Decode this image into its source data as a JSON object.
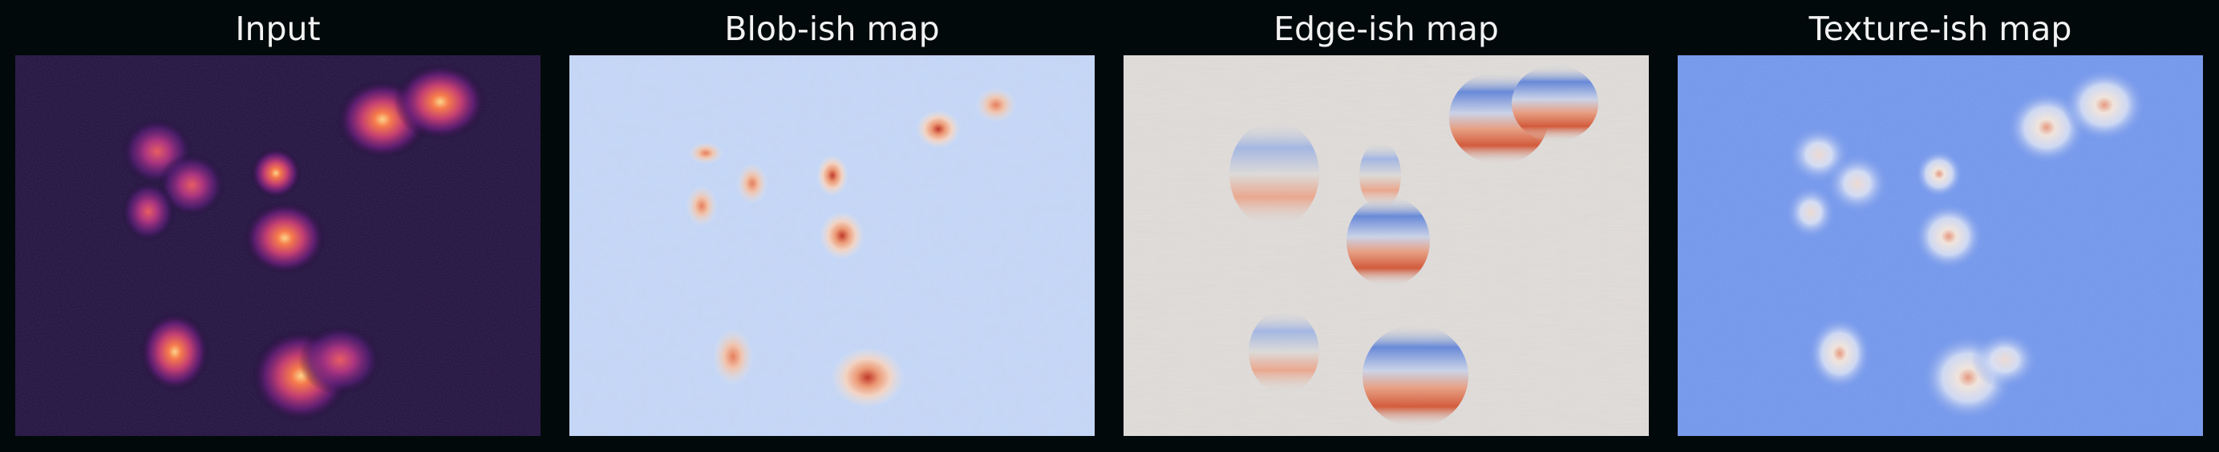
{
  "panels": [
    {
      "title": "Input",
      "colormap": "magma"
    },
    {
      "title": "Blob-ish map",
      "colormap": "coolwarm"
    },
    {
      "title": "Edge-ish map",
      "colormap": "coolwarm"
    },
    {
      "title": "Texture-ish map",
      "colormap": "coolwarm"
    }
  ],
  "colors": {
    "figure_background": "#02090b",
    "title_text": "#f2f2f2",
    "magma_dark": "#140b2e",
    "magma_purple": "#8a2a7c",
    "magma_orange": "#f57a4c",
    "magma_yellow": "#fcd38a",
    "coolwarm_blue": "#6f93ea",
    "coolwarm_pale_blue": "#c6d6f3",
    "coolwarm_neutral": "#dcdad8",
    "coolwarm_red": "#d2512f"
  }
}
